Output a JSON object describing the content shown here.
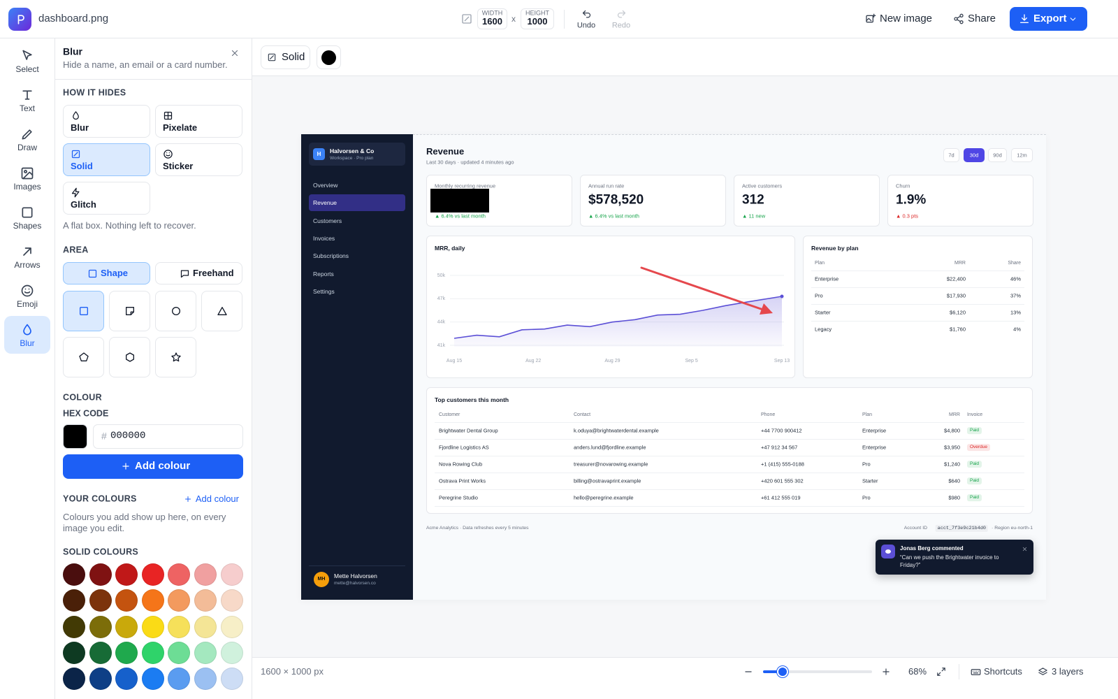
{
  "app": {
    "filename": "dashboard.png",
    "width_label": "WIDTH",
    "width": 1600,
    "x_sep": "x",
    "height_label": "HEIGHT",
    "height": 1000,
    "undo": "Undo",
    "redo": "Redo",
    "new_image": "New image",
    "share": "Share",
    "export": "Export"
  },
  "tools": [
    "Select",
    "Text",
    "Draw",
    "Images",
    "Shapes",
    "Arrows",
    "Emoji",
    "Blur"
  ],
  "panel": {
    "title": "Blur",
    "subtitle": "Hide a name, an email or a card number.",
    "how_heading": "HOW IT HIDES",
    "methods": [
      "Blur",
      "Pixelate",
      "Solid",
      "Sticker",
      "Glitch"
    ],
    "method_note": "A flat box. Nothing left to recover.",
    "area_heading": "AREA",
    "area_modes": [
      "Shape",
      "Freehand"
    ],
    "colour_heading": "COLOUR",
    "hex_label": "HEX CODE",
    "hex_hash": "#",
    "hex_value": "000000",
    "add_colour": "Add colour",
    "your_colours": "YOUR COLOURS",
    "your_add": "Add colour",
    "your_note": "Colours you add show up here, on every image you edit.",
    "solid_heading": "SOLID COLOURS",
    "swatches": [
      "#4a0e0e",
      "#7f1212",
      "#c01818",
      "#e82424",
      "#ee6363",
      "#f0a0a0",
      "#f6cdcd",
      "#4a2008",
      "#7c330c",
      "#c4530f",
      "#f57519",
      "#f39a5e",
      "#f3bc98",
      "#f7d9c8",
      "#423a05",
      "#7c6d09",
      "#c9a90b",
      "#fadb16",
      "#f6e05a",
      "#f4e596",
      "#f7efc7",
      "#0e3a22",
      "#176b36",
      "#1fa94d",
      "#2fd36a",
      "#6ddd95",
      "#a4e8bf",
      "#d0f1dd",
      "#0b2448",
      "#0e3f86",
      "#1660cb",
      "#1b7cf2",
      "#5a9cf0",
      "#9bc0f2",
      "#cdddf5"
    ]
  },
  "canvas_toolbar": {
    "mode": "Solid"
  },
  "status": {
    "size": "1600 × 1000 px",
    "zoom": "68%",
    "shortcuts": "Shortcuts",
    "layers": "3 layers"
  },
  "dashboard": {
    "brand": "Halvorsen & Co",
    "brand_initial": "H",
    "workspace": "Workspace · Pro plan",
    "nav": [
      "Overview",
      "Revenue",
      "Customers",
      "Invoices",
      "Subscriptions",
      "Reports",
      "Settings"
    ],
    "active_nav": "Revenue",
    "user_initials": "MH",
    "user_name": "Mette Halvorsen",
    "user_email": "mette@halvorsen.co",
    "title": "Revenue",
    "subtitle": "Last 30 days · updated 4 minutes ago",
    "ranges": [
      "7d",
      "30d",
      "90d",
      "12m"
    ],
    "active_range": "30d",
    "kpis": [
      {
        "label": "Monthly recurring revenue",
        "delta": "▲ 6.4% vs last month",
        "delta_color": "#16a34a"
      },
      {
        "label": "Annual run rate",
        "value": "$578,520",
        "delta": "▲ 6.4% vs last month",
        "delta_color": "#16a34a"
      },
      {
        "label": "Active customers",
        "value": "312",
        "delta": "▲ 11 new",
        "delta_color": "#16a34a"
      },
      {
        "label": "Churn",
        "value": "1.9%",
        "delta": "▲ 0.3 pts",
        "delta_color": "#dc2626"
      }
    ],
    "chart": {
      "type": "line",
      "title": "MRR, daily",
      "color": "#5b4fd6",
      "x": [
        0,
        2,
        4,
        6,
        8,
        10,
        12,
        14,
        16,
        18,
        20,
        22,
        24,
        26,
        29
      ],
      "values": [
        41900,
        42300,
        42100,
        43000,
        43100,
        43600,
        43400,
        44000,
        44300,
        44900,
        45000,
        45500,
        46100,
        46600,
        47300
      ],
      "xlim": [
        0,
        29
      ],
      "ylim": [
        41000,
        50000
      ],
      "yticks": [
        {
          "value": 50000,
          "label": "50k"
        },
        {
          "value": 47000,
          "label": "47k"
        },
        {
          "value": 44000,
          "label": "44k"
        },
        {
          "value": 41000,
          "label": "41k"
        }
      ],
      "xticks": [
        {
          "value": 0,
          "label": "Aug 15"
        },
        {
          "value": 7,
          "label": "Aug 22"
        },
        {
          "value": 14,
          "label": "Aug 29"
        },
        {
          "value": 21,
          "label": "Sep 5"
        },
        {
          "value": 29,
          "label": "Sep 13"
        }
      ],
      "grid": true
    },
    "plans": {
      "title": "Revenue by plan",
      "headers": [
        "Plan",
        "MRR",
        "Share"
      ],
      "rows": [
        [
          "Enterprise",
          "$22,400",
          "46%"
        ],
        [
          "Pro",
          "$17,930",
          "37%"
        ],
        [
          "Starter",
          "$6,120",
          "13%"
        ],
        [
          "Legacy",
          "$1,760",
          "4%"
        ]
      ]
    },
    "customers": {
      "title": "Top customers this month",
      "headers": [
        "Customer",
        "Contact",
        "Phone",
        "Plan",
        "MRR",
        "Invoice"
      ],
      "rows": [
        [
          "Brightwater Dental Group",
          "k.oduya@brightwaterdental.example",
          "+44 7700 900412",
          "Enterprise",
          "$4,800",
          "Paid"
        ],
        [
          "Fjordline Logistics AS",
          "anders.lund@fjordline.example",
          "+47 912 34 567",
          "Enterprise",
          "$3,950",
          "Overdue"
        ],
        [
          "Nova Rowing Club",
          "treasurer@novarowing.example",
          "+1 (415) 555-0188",
          "Pro",
          "$1,240",
          "Paid"
        ],
        [
          "Ostrava Print Works",
          "billing@ostravaprint.example",
          "+420 601 555 302",
          "Starter",
          "$640",
          "Paid"
        ],
        [
          "Peregrine Studio",
          "hello@peregrine.example",
          "+61 412 555 019",
          "Pro",
          "$980",
          "Paid"
        ]
      ],
      "invoice_colors": [
        "#16a34a",
        "#dc2626",
        "#16a34a",
        "#16a34a",
        "#16a34a"
      ]
    },
    "footer_left": "Acme Analytics · Data refreshes every 5 minutes",
    "account_label": "Account ID",
    "account_id": "acct_7f3e9c21b4d0",
    "region": "· Region eu-north-1",
    "toast": {
      "title": "Jonas Berg commented",
      "text": "“Can we push the Brightwater invoice to Friday?”"
    }
  }
}
